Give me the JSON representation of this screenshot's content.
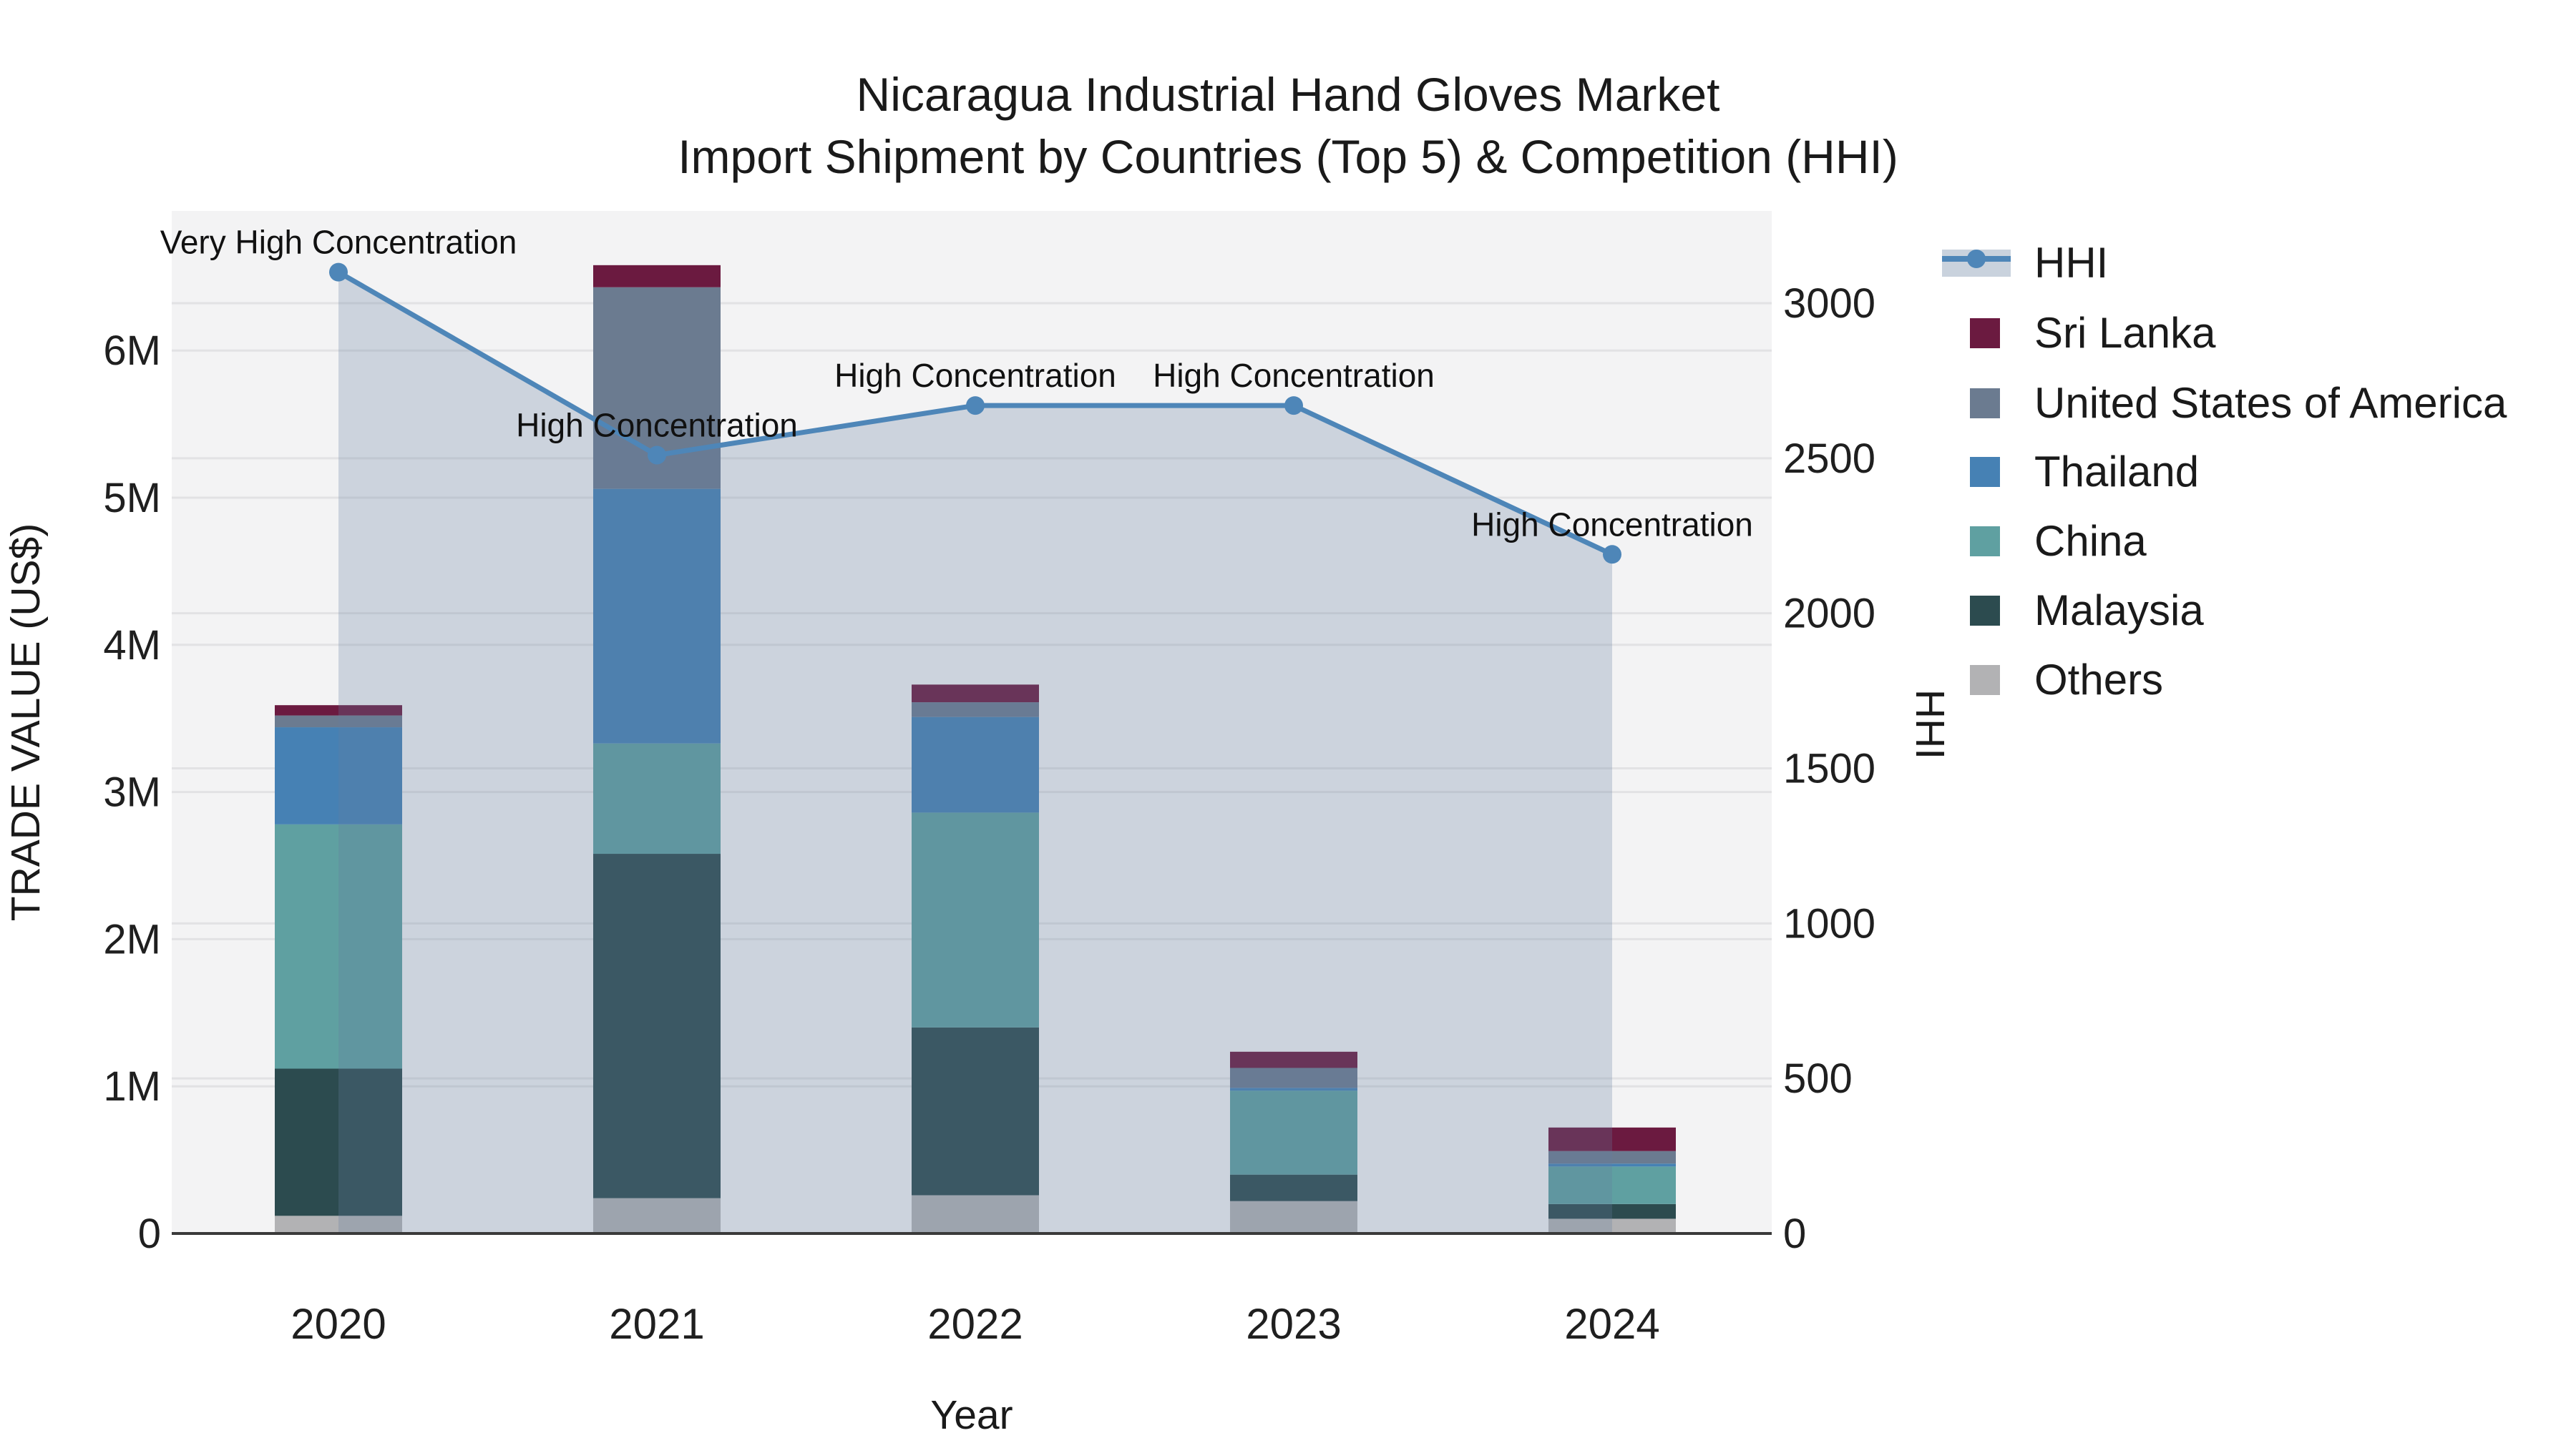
{
  "chart_data": {
    "type": "bar+line",
    "title": "Nicaragua Industrial Hand Gloves Market",
    "subtitle": "Import Shipment by Countries (Top 5) & Competition (HHI)",
    "xlabel": "Year",
    "ylabel_left": "TRADE VALUE (US$)",
    "ylabel_right": "HHI",
    "categories": [
      "2020",
      "2021",
      "2022",
      "2023",
      "2024"
    ],
    "stacked_bar_series_topmost_first": [
      {
        "name": "Sri Lanka",
        "color": "#6b1a40",
        "values_musd": [
          0.07,
          0.15,
          0.12,
          0.11,
          0.16
        ]
      },
      {
        "name": "United States of America",
        "color": "#6b7b90",
        "values_musd": [
          0.08,
          1.37,
          0.1,
          0.135,
          0.085
        ]
      },
      {
        "name": "Thailand",
        "color": "#4681b4",
        "values_musd": [
          0.66,
          1.73,
          0.65,
          0.02,
          0.02
        ]
      },
      {
        "name": "China",
        "color": "#5fa0a1",
        "values_musd": [
          1.66,
          0.75,
          1.46,
          0.57,
          0.255
        ]
      },
      {
        "name": "Malaysia",
        "color": "#2c4b4f",
        "values_musd": [
          1.0,
          2.34,
          1.14,
          0.18,
          0.1
        ]
      },
      {
        "name": "Others",
        "color": "#b2b2b4",
        "values_musd": [
          0.12,
          0.24,
          0.26,
          0.22,
          0.1
        ]
      }
    ],
    "bar_totals_musd": [
      3.59,
      6.58,
      3.73,
      1.24,
      0.72
    ],
    "line_series": {
      "name": "HHI",
      "color": "#4e86b8",
      "area_fill": "rgba(100,125,160,0.27)",
      "values": [
        3100,
        2510,
        2670,
        2670,
        2190
      ]
    },
    "point_annotations": [
      "Very High Concentration",
      "High Concentration",
      "High Concentration",
      "High Concentration",
      "High Concentration"
    ],
    "y_left_ticks": [
      "0",
      "1M",
      "2M",
      "3M",
      "4M",
      "5M",
      "6M"
    ],
    "y_left_tick_values": [
      0,
      1,
      2,
      3,
      4,
      5,
      6
    ],
    "y_right_ticks": [
      "0",
      "500",
      "1000",
      "1500",
      "2000",
      "2500",
      "3000"
    ],
    "y_right_tick_values": [
      0,
      500,
      1000,
      1500,
      2000,
      2500,
      3000
    ],
    "legend_entries": [
      "HHI",
      "Sri Lanka",
      "United States of America",
      "Thailand",
      "China",
      "Malaysia",
      "Others"
    ],
    "legend_position": "right",
    "grid": true,
    "axis_ranges": {
      "y_left_max_musd": 6.95,
      "y_right_max": 3295
    },
    "style": {
      "plot_bg": "#f3f3f4",
      "grid_color": "#e2e2e4",
      "spine_color": "#3a3a3a",
      "legend_hhi_band": "#c9d2dd"
    }
  }
}
